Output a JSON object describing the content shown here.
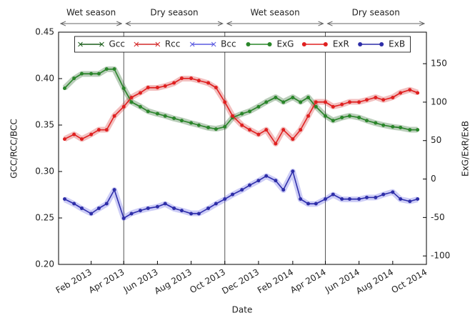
{
  "chart_data": {
    "type": "line",
    "xlabel": "Date",
    "ylabel": "GCC/RCC/BCC",
    "y2label": "ExG/ExR/ExB",
    "x": [
      "2012-12-15",
      "2013-01-01",
      "2013-01-15",
      "2013-02-01",
      "2013-02-15",
      "2013-03-01",
      "2013-03-15",
      "2013-04-01",
      "2013-04-15",
      "2013-05-01",
      "2013-05-15",
      "2013-06-01",
      "2013-06-15",
      "2013-07-01",
      "2013-07-15",
      "2013-08-01",
      "2013-08-15",
      "2013-09-01",
      "2013-09-15",
      "2013-10-01",
      "2013-10-15",
      "2013-11-01",
      "2013-11-15",
      "2013-12-01",
      "2013-12-15",
      "2014-01-01",
      "2014-01-15",
      "2014-02-01",
      "2014-02-15",
      "2014-03-01",
      "2014-03-15",
      "2014-04-01",
      "2014-04-15",
      "2014-05-01",
      "2014-05-15",
      "2014-06-01",
      "2014-06-15",
      "2014-07-01",
      "2014-07-15",
      "2014-08-01",
      "2014-08-15",
      "2014-09-01",
      "2014-09-15"
    ],
    "xlim": [
      "2012-12-04",
      "2014-10-01"
    ],
    "xticks": [
      {
        "value": "2013-02-01",
        "label": "Feb 2013"
      },
      {
        "value": "2013-04-01",
        "label": "Apr 2013"
      },
      {
        "value": "2013-06-01",
        "label": "Jun 2013"
      },
      {
        "value": "2013-08-01",
        "label": "Aug 2013"
      },
      {
        "value": "2013-10-01",
        "label": "Oct 2013"
      },
      {
        "value": "2013-12-01",
        "label": "Dec 2013"
      },
      {
        "value": "2014-02-01",
        "label": "Feb 2014"
      },
      {
        "value": "2014-04-01",
        "label": "Apr 2014"
      },
      {
        "value": "2014-06-01",
        "label": "Jun 2014"
      },
      {
        "value": "2014-08-01",
        "label": "Aug 2014"
      },
      {
        "value": "2014-10-01",
        "label": "Oct 2014"
      }
    ],
    "ylim": [
      0.2,
      0.45
    ],
    "yticks": [
      {
        "value": 0.2,
        "label": "0.20"
      },
      0.25,
      {
        "value": 0.3,
        "label": "0.30"
      },
      0.35,
      {
        "value": 0.4,
        "label": "0.40"
      },
      0.45
    ],
    "y2lim": [
      -111,
      191
    ],
    "y2ticks": [
      -100,
      -50,
      0,
      50,
      100,
      150
    ],
    "legend": "upper center",
    "seasons": [
      {
        "label": "Wet season",
        "start": "2012-12-04",
        "end": "2013-04-01"
      },
      {
        "label": "Dry season",
        "start": "2013-04-01",
        "end": "2013-10-01"
      },
      {
        "label": "Wet season",
        "start": "2013-10-01",
        "end": "2014-04-01"
      },
      {
        "label": "Dry season",
        "start": "2014-04-01",
        "end": "2014-10-01"
      }
    ],
    "series": [
      {
        "name": "Gcc",
        "color": "#1a5e1a",
        "values": [
          0.39,
          0.4,
          0.405,
          0.405,
          0.405,
          0.41,
          0.41,
          0.39,
          0.375,
          0.37,
          0.365,
          0.362,
          0.36,
          0.357,
          0.355,
          0.352,
          0.35,
          0.347,
          0.346,
          0.348,
          0.358,
          0.362,
          0.365,
          0.37,
          0.375,
          0.38,
          0.375,
          0.38,
          0.375,
          0.38,
          0.37,
          0.36,
          0.355,
          0.358,
          0.36,
          0.358,
          0.355,
          0.352,
          0.35,
          0.348,
          0.347,
          0.345,
          0.345
        ]
      },
      {
        "name": "Rcc",
        "color": "#d42a2a",
        "values": [
          0.335,
          0.34,
          0.335,
          0.34,
          0.345,
          0.345,
          0.36,
          0.37,
          0.38,
          0.385,
          0.39,
          0.39,
          0.392,
          0.395,
          0.4,
          0.4,
          0.398,
          0.395,
          0.39,
          0.375,
          0.36,
          0.35,
          0.345,
          0.34,
          0.345,
          0.33,
          0.345,
          0.335,
          0.345,
          0.36,
          0.375,
          0.375,
          0.37,
          0.372,
          0.375,
          0.375,
          0.377,
          0.38,
          0.377,
          0.38,
          0.385,
          0.388,
          0.385
        ]
      },
      {
        "name": "Bcc",
        "color": "#5a5ae0",
        "values": [
          0.27,
          0.265,
          0.26,
          0.255,
          0.26,
          0.265,
          0.28,
          0.25,
          0.255,
          0.258,
          0.26,
          0.262,
          0.265,
          0.26,
          0.258,
          0.255,
          0.255,
          0.26,
          0.265,
          0.27,
          0.275,
          0.28,
          0.285,
          0.29,
          0.295,
          0.29,
          0.28,
          0.3,
          0.27,
          0.265,
          0.265,
          0.27,
          0.275,
          0.27,
          0.27,
          0.27,
          0.272,
          0.272,
          0.275,
          0.278,
          0.27,
          0.268,
          0.27
        ]
      },
      {
        "name": "ExG",
        "color": "#2a862a",
        "axis": "y2",
        "values": [
          118,
          131,
          137,
          137,
          137,
          143,
          143,
          118,
          100,
          94,
          88,
          85,
          82,
          79,
          76,
          73,
          70,
          67,
          65,
          68,
          80,
          85,
          88,
          94,
          100,
          106,
          100,
          106,
          100,
          106,
          94,
          82,
          76,
          80,
          82,
          80,
          76,
          73,
          70,
          68,
          67,
          64,
          64
        ]
      },
      {
        "name": "ExR",
        "color": "#e02020",
        "axis": "y2",
        "values": [
          52,
          58,
          52,
          58,
          64,
          64,
          82,
          94,
          106,
          112,
          119,
          119,
          121,
          125,
          131,
          131,
          128,
          125,
          119,
          100,
          82,
          70,
          64,
          58,
          64,
          46,
          64,
          52,
          64,
          82,
          100,
          100,
          94,
          97,
          100,
          100,
          103,
          106,
          103,
          106,
          112,
          116,
          112
        ]
      },
      {
        "name": "ExB",
        "color": "#2e2ea8",
        "axis": "y2",
        "values": [
          -26,
          -32,
          -38,
          -45,
          -38,
          -32,
          -14,
          -51,
          -45,
          -41,
          -38,
          -36,
          -32,
          -38,
          -41,
          -45,
          -45,
          -38,
          -32,
          -26,
          -20,
          -14,
          -8,
          -2,
          4,
          -2,
          -14,
          10,
          -26,
          -32,
          -32,
          -26,
          -20,
          -26,
          -26,
          -26,
          -24,
          -24,
          -20,
          -17,
          -26,
          -29,
          -26
        ]
      }
    ]
  }
}
